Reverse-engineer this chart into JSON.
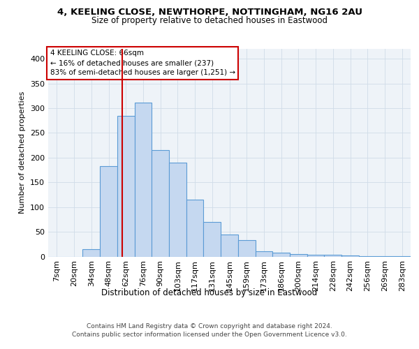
{
  "title1": "4, KEELING CLOSE, NEWTHORPE, NOTTINGHAM, NG16 2AU",
  "title2": "Size of property relative to detached houses in Eastwood",
  "xlabel": "Distribution of detached houses by size in Eastwood",
  "ylabel": "Number of detached properties",
  "categories": [
    "7sqm",
    "20sqm",
    "34sqm",
    "48sqm",
    "62sqm",
    "76sqm",
    "90sqm",
    "103sqm",
    "117sqm",
    "131sqm",
    "145sqm",
    "159sqm",
    "173sqm",
    "186sqm",
    "200sqm",
    "214sqm",
    "228sqm",
    "242sqm",
    "256sqm",
    "269sqm",
    "283sqm"
  ],
  "values": [
    0,
    0,
    15,
    183,
    285,
    312,
    215,
    190,
    115,
    70,
    45,
    33,
    11,
    8,
    5,
    3,
    4,
    2,
    1,
    1,
    1
  ],
  "bar_color": "#c5d8f0",
  "bar_edge_color": "#5b9bd5",
  "bar_edge_width": 0.8,
  "annotation_title": "4 KEELING CLOSE: 66sqm",
  "annotation_line1": "← 16% of detached houses are smaller (237)",
  "annotation_line2": "83% of semi-detached houses are larger (1,251) →",
  "annotation_box_color": "#ffffff",
  "annotation_box_edge": "#cc0000",
  "ylim": [
    0,
    420
  ],
  "grid_color": "#d0dce8",
  "background_color": "#eef3f8",
  "footer1": "Contains HM Land Registry data © Crown copyright and database right 2024.",
  "footer2": "Contains public sector information licensed under the Open Government Licence v3.0."
}
